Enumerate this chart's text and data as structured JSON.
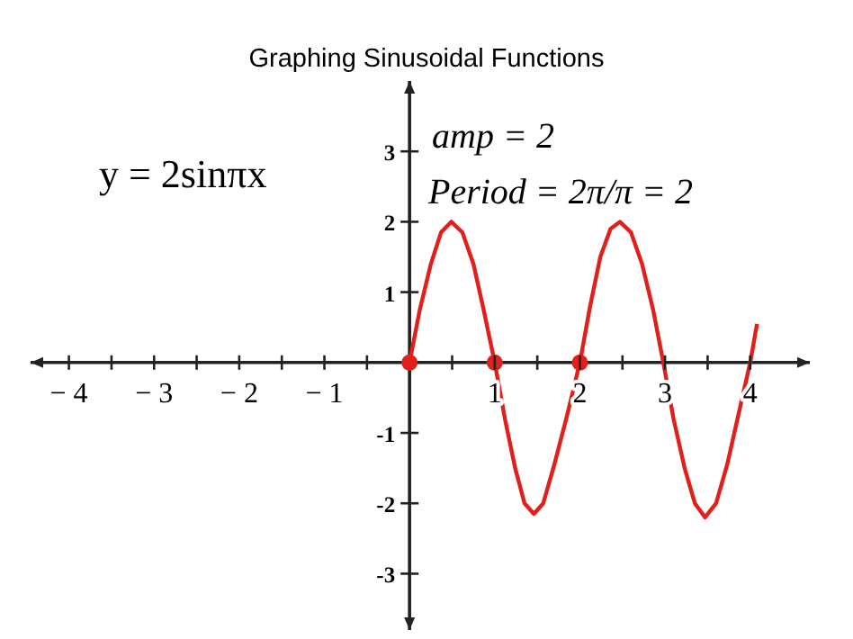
{
  "chart_data": {
    "type": "line",
    "title": "Graphing Sinusoidal Functions",
    "annotations": [
      "y = 2sinπx",
      "amp = 2",
      "Period = 2π/π = 2"
    ],
    "xlim": [
      -4.45,
      4.7
    ],
    "ylim": [
      -3.8,
      4
    ],
    "xticks": [
      {
        "value": -4,
        "label": "− 4"
      },
      {
        "value": -3.5,
        "label": null
      },
      {
        "value": -3,
        "label": "− 3"
      },
      {
        "value": -2.5,
        "label": null
      },
      {
        "value": -2,
        "label": "− 2"
      },
      {
        "value": -1.5,
        "label": null
      },
      {
        "value": -1,
        "label": "− 1"
      },
      {
        "value": -0.5,
        "label": null
      },
      {
        "value": 0.5,
        "label": null
      },
      1,
      {
        "value": 1.5,
        "label": null
      },
      2,
      {
        "value": 2.5,
        "label": null
      },
      3,
      {
        "value": 3.5,
        "label": null
      },
      4
    ],
    "yticks": [
      -3,
      -2,
      -1,
      1,
      2,
      3
    ],
    "grid": false,
    "series": [
      {
        "type": "line",
        "color": "#e0201b",
        "marker": "none",
        "x": [
          0,
          0.12,
          0.25,
          0.37,
          0.49,
          0.62,
          0.75,
          0.87,
          1,
          1.12,
          1.24,
          1.35,
          1.46,
          1.57,
          1.7,
          1.85,
          2,
          2.12,
          2.24,
          2.36,
          2.47,
          2.6,
          2.73,
          2.86,
          2.98,
          3.1,
          3.23,
          3.35,
          3.47,
          3.6,
          3.73,
          3.86,
          4,
          4.08
        ],
        "values": [
          0,
          0.75,
          1.4,
          1.85,
          2,
          1.85,
          1.4,
          0.75,
          0,
          -0.8,
          -1.5,
          -2,
          -2.15,
          -2,
          -1.45,
          -0.75,
          0,
          0.8,
          1.5,
          1.9,
          2,
          1.85,
          1.4,
          0.75,
          0,
          -0.8,
          -1.5,
          -2,
          -2.2,
          -2,
          -1.45,
          -0.75,
          0,
          0.55
        ]
      },
      {
        "type": "scatter",
        "color": "#e0201b",
        "marker": "circle",
        "x": [
          0,
          1,
          2
        ],
        "values": [
          0,
          0,
          0
        ]
      }
    ]
  }
}
